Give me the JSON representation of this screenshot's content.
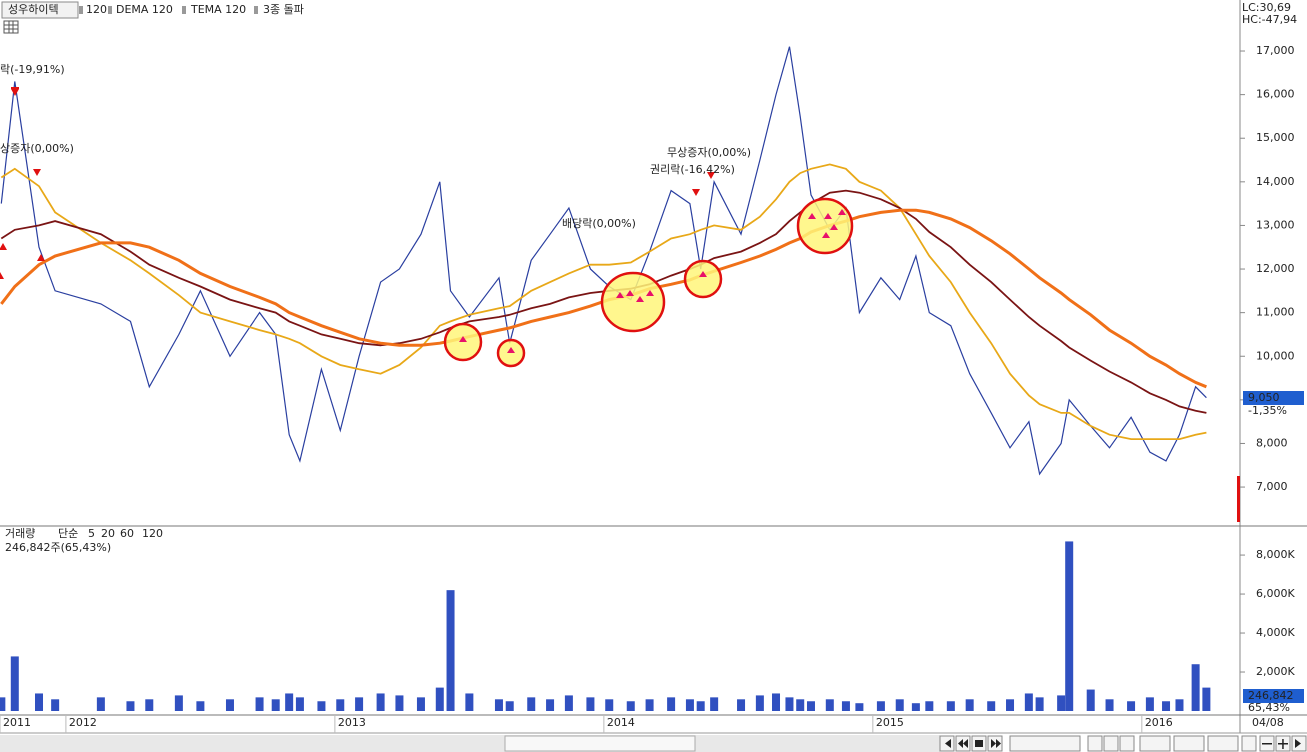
{
  "header": {
    "stock": "성우하이텍",
    "signal": "3종 돌파",
    "lc": "LC:30,69",
    "hc": "HC:-47,94",
    "date_label": "04/08"
  },
  "chart_data": [
    {
      "type": "line",
      "x": [
        2011.76,
        2011.81,
        2011.9,
        2011.96,
        2012.13,
        2012.24,
        2012.31,
        2012.42,
        2012.5,
        2012.61,
        2012.72,
        2012.78,
        2012.83,
        2012.87,
        2012.95,
        2013.02,
        2013.09,
        2013.17,
        2013.24,
        2013.32,
        2013.39,
        2013.43,
        2013.5,
        2013.61,
        2013.65,
        2013.73,
        2013.8,
        2013.87,
        2013.95,
        2014.02,
        2014.1,
        2014.17,
        2014.25,
        2014.32,
        2014.36,
        2014.41,
        2014.51,
        2014.58,
        2014.64,
        2014.69,
        2014.73,
        2014.77,
        2014.84,
        2014.9,
        2014.95,
        2015.03,
        2015.1,
        2015.16,
        2015.21,
        2015.29,
        2015.36,
        2015.44,
        2015.51,
        2015.58,
        2015.62,
        2015.7,
        2015.73,
        2015.81,
        2015.88,
        2015.96,
        2016.03,
        2016.09,
        2016.14,
        2016.2,
        2016.24
      ],
      "xlim": [
        2011.755,
        2016.365
      ],
      "ylim": [
        6130,
        18170
      ],
      "yticks": [
        {
          "value": 7000,
          "label": "7,000"
        },
        {
          "value": 8000,
          "label": "8,000"
        },
        {
          "value": 9000,
          "label": "9,000"
        },
        {
          "value": 10000,
          "label": "10,000"
        },
        {
          "value": 11000,
          "label": "11,000"
        },
        {
          "value": 12000,
          "label": "12,000"
        },
        {
          "value": 13000,
          "label": "13,000"
        },
        {
          "value": 14000,
          "label": "14,000"
        },
        {
          "value": 15000,
          "label": "15,000"
        },
        {
          "value": 16000,
          "label": "16,000"
        },
        {
          "value": 17000,
          "label": "17,000"
        }
      ],
      "series": [
        {
          "name": "성우하이텍",
          "color": "#2a3fa0",
          "values": [
            13500,
            16300,
            12500,
            11500,
            11200,
            10800,
            9300,
            10500,
            11500,
            10000,
            11000,
            10500,
            8200,
            7600,
            9700,
            8300,
            10000,
            11700,
            12000,
            12800,
            14000,
            11500,
            10900,
            11800,
            10300,
            12200,
            12800,
            13400,
            12000,
            11600,
            11300,
            12400,
            13800,
            13500,
            12000,
            14000,
            12800,
            14500,
            16000,
            17100,
            15500,
            13700,
            12900,
            13400,
            11000,
            11800,
            11300,
            12300,
            11000,
            10700,
            9600,
            8700,
            7900,
            8500,
            7300,
            8000,
            9000,
            8400,
            7900,
            8600,
            7800,
            7600,
            8200,
            9300,
            9050
          ]
        },
        {
          "name": "120",
          "color": "#e8a818",
          "values": [
            14100,
            14300,
            13900,
            13300,
            12600,
            12200,
            11900,
            11400,
            11000,
            10800,
            10600,
            10500,
            10400,
            10300,
            10000,
            9800,
            9700,
            9600,
            9800,
            10200,
            10700,
            10800,
            10950,
            11100,
            11150,
            11500,
            11700,
            11900,
            12100,
            12100,
            12150,
            12400,
            12700,
            12800,
            12900,
            13000,
            12900,
            13200,
            13600,
            14000,
            14200,
            14300,
            14400,
            14300,
            14000,
            13800,
            13400,
            12800,
            12300,
            11700,
            11000,
            10300,
            9600,
            9100,
            8900,
            8700,
            8700,
            8400,
            8200,
            8100,
            8100,
            8100,
            8100,
            8200,
            8250
          ]
        },
        {
          "name": "DEMA 120",
          "color": "#7a1414",
          "values": [
            12700,
            12900,
            13000,
            13100,
            12800,
            12400,
            12100,
            11800,
            11600,
            11300,
            11100,
            11000,
            10800,
            10700,
            10500,
            10400,
            10300,
            10250,
            10300,
            10400,
            10550,
            10650,
            10800,
            10900,
            10950,
            11100,
            11200,
            11350,
            11450,
            11500,
            11550,
            11650,
            11850,
            12000,
            12100,
            12250,
            12400,
            12600,
            12800,
            13100,
            13300,
            13500,
            13750,
            13800,
            13750,
            13600,
            13400,
            13150,
            12850,
            12500,
            12100,
            11700,
            11300,
            10900,
            10700,
            10350,
            10200,
            9900,
            9650,
            9400,
            9150,
            9000,
            8850,
            8750,
            8700
          ]
        },
        {
          "name": "TEMA 120",
          "color": "#f07018",
          "values": [
            11200,
            11600,
            12100,
            12300,
            12600,
            12600,
            12500,
            12200,
            11900,
            11600,
            11350,
            11200,
            11000,
            10900,
            10700,
            10550,
            10400,
            10300,
            10250,
            10250,
            10300,
            10350,
            10450,
            10600,
            10650,
            10800,
            10900,
            11000,
            11150,
            11300,
            11400,
            11550,
            11650,
            11750,
            11850,
            11950,
            12150,
            12300,
            12450,
            12600,
            12700,
            12850,
            13000,
            13100,
            13200,
            13300,
            13350,
            13350,
            13300,
            13150,
            12950,
            12650,
            12350,
            12000,
            11800,
            11450,
            11300,
            10950,
            10600,
            10300,
            10000,
            9800,
            9600,
            9400,
            9300
          ]
        }
      ],
      "last_label": "9,050",
      "change_label": "-1,35%",
      "annotations": [
        "락(-19,91%)",
        "상증자(0,00%)",
        "배당락(0,00%)",
        "무상증자(0,00%)",
        "권리락(-16,42%)"
      ]
    },
    {
      "type": "bar",
      "title": "거래량",
      "subtitle": "246,842주(65,43%)",
      "legend": [
        "단순",
        "5",
        "20",
        "60",
        "120"
      ],
      "x": [
        2011.76,
        2011.81,
        2011.9,
        2011.96,
        2012.13,
        2012.24,
        2012.31,
        2012.42,
        2012.5,
        2012.61,
        2012.72,
        2012.78,
        2012.83,
        2012.87,
        2012.95,
        2013.02,
        2013.09,
        2013.17,
        2013.24,
        2013.32,
        2013.39,
        2013.43,
        2013.5,
        2013.61,
        2013.65,
        2013.73,
        2013.8,
        2013.87,
        2013.95,
        2014.02,
        2014.1,
        2014.17,
        2014.25,
        2014.32,
        2014.36,
        2014.41,
        2014.51,
        2014.58,
        2014.64,
        2014.69,
        2014.73,
        2014.77,
        2014.84,
        2014.9,
        2014.95,
        2015.03,
        2015.1,
        2015.16,
        2015.21,
        2015.29,
        2015.36,
        2015.44,
        2015.51,
        2015.58,
        2015.62,
        2015.7,
        2015.73,
        2015.81,
        2015.88,
        2015.96,
        2016.03,
        2016.09,
        2016.14,
        2016.2,
        2016.24
      ],
      "values": [
        700,
        2800,
        900,
        600,
        700,
        500,
        600,
        800,
        500,
        600,
        700,
        600,
        900,
        700,
        500,
        600,
        700,
        900,
        800,
        700,
        1200,
        6200,
        900,
        600,
        500,
        700,
        600,
        800,
        700,
        600,
        500,
        600,
        700,
        600,
        500,
        700,
        600,
        800,
        900,
        700,
        600,
        500,
        600,
        500,
        400,
        500,
        600,
        400,
        500,
        500,
        600,
        500,
        600,
        900,
        700,
        800,
        8700,
        1100,
        600,
        500,
        700,
        500,
        600,
        2400,
        1200
      ],
      "color": "#3050c0",
      "xlim": [
        2011.755,
        2016.365
      ],
      "ylim": [
        0,
        9440
      ],
      "yticks": [
        {
          "value": 2000,
          "label": "2,000K"
        },
        {
          "value": 4000,
          "label": "4,000K"
        },
        {
          "value": 6000,
          "label": "6,000K"
        },
        {
          "value": 8000,
          "label": "8,000K"
        }
      ],
      "xticks": [
        {
          "value": 2011.755,
          "label": "2011"
        },
        2012,
        2013,
        2014,
        2015,
        2016
      ],
      "last_label": "246,842",
      "change_label": "65,43%"
    }
  ]
}
